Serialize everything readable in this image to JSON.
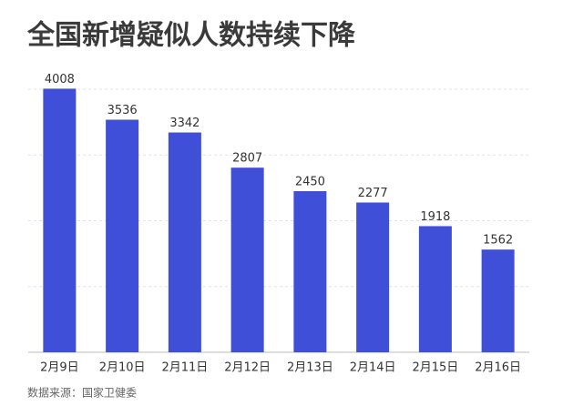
{
  "chart_data": {
    "type": "bar",
    "title": "全国新增疑似人数持续下降",
    "categories": [
      "2月9日",
      "2月10日",
      "2月11日",
      "2月12日",
      "2月13日",
      "2月14日",
      "2月15日",
      "2月16日"
    ],
    "values": [
      4008,
      3536,
      3342,
      2807,
      2450,
      2277,
      1918,
      1562
    ],
    "color": "#3f4fd8",
    "ylim": [
      0,
      4000
    ],
    "yticks": [
      0,
      1000,
      2000,
      3000,
      4000
    ],
    "grid": true,
    "source": "数据来源：国家卫健委"
  }
}
